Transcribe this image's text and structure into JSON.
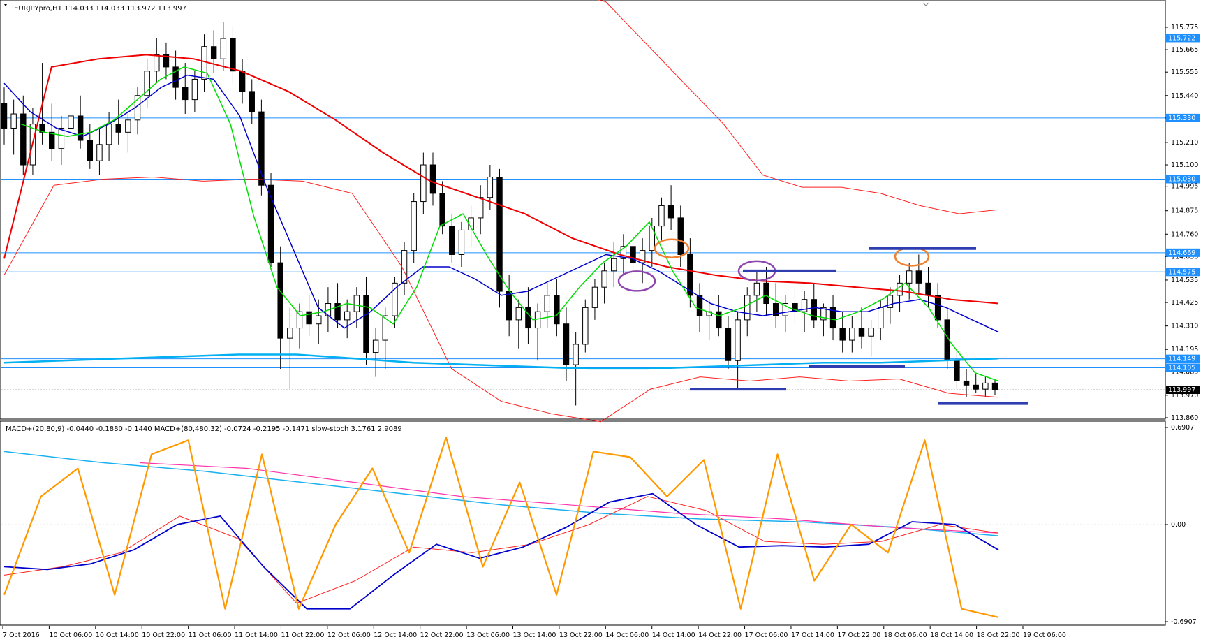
{
  "main_header": "EURJPYpro,H1  114.033 114.033 113.972 113.997",
  "sub_header": "MACD+(20,80,9) -0.0440 -0.1880 -0.1440  MACD+(80,480,32) -0.0724 -0.2195 -0.1471  slow-stoch 3.1761 2.9089",
  "colors": {
    "bull": "#ffffff",
    "bear": "#000000",
    "hline": "#1e90ff",
    "ma_fast": "#00dd00",
    "ma_mid": "#0000cc",
    "ma_slow": "#ee0000",
    "ma_long": "#00b0f0",
    "env": "#ff2020",
    "marker_blue": "#2e3db0",
    "circle_orange": "#f08030",
    "circle_purple": "#8e44ad",
    "stoch_orange": "#ff9900",
    "macd_blue": "#0000cc",
    "macd_pink": "#ff33aa",
    "macd_cyan": "#1ab0f0"
  },
  "chart_data": [
    {
      "type": "candlestick",
      "symbol": "EURJPYpro",
      "timeframe": "H1",
      "ylim": [
        113.86,
        115.84
      ],
      "y_ticks": [
        "115.775",
        "115.665",
        "115.555",
        "115.440",
        "115.330",
        "115.210",
        "115.100",
        "114.995",
        "114.875",
        "114.760",
        "114.650",
        "114.535",
        "114.425",
        "114.310",
        "114.195",
        "114.085",
        "113.970",
        "113.860"
      ],
      "x_ticks": [
        "7 Oct 2016",
        "10 Oct 06:00",
        "10 Oct 14:00",
        "10 Oct 22:00",
        "11 Oct 06:00",
        "11 Oct 14:00",
        "11 Oct 22:00",
        "12 Oct 06:00",
        "12 Oct 14:00",
        "12 Oct 22:00",
        "13 Oct 06:00",
        "13 Oct 14:00",
        "13 Oct 22:00",
        "14 Oct 06:00",
        "14 Oct 14:00",
        "14 Oct 22:00",
        "17 Oct 06:00",
        "17 Oct 14:00",
        "17 Oct 22:00",
        "18 Oct 06:00",
        "18 Oct 14:00",
        "18 Oct 22:00",
        "19 Oct 06:00"
      ],
      "horizontal_levels": [
        115.722,
        115.33,
        115.03,
        114.669,
        114.575,
        114.149,
        114.105
      ],
      "level_labels": [
        "115.722",
        "115.330",
        "115.030",
        "114.669",
        "114.575",
        "114.149",
        "114.105"
      ],
      "current_price": 113.997,
      "current_price_label": "113.997",
      "candles": [
        [
          115.4,
          115.48,
          115.2,
          115.28
        ],
        [
          115.28,
          115.42,
          115.15,
          115.35
        ],
        [
          115.35,
          115.44,
          115.05,
          115.1
        ],
        [
          115.1,
          115.38,
          115.05,
          115.3
        ],
        [
          115.3,
          115.6,
          115.2,
          115.26
        ],
        [
          115.26,
          115.4,
          115.12,
          115.18
        ],
        [
          115.18,
          115.34,
          115.1,
          115.28
        ],
        [
          115.28,
          115.42,
          115.2,
          115.34
        ],
        [
          115.34,
          115.44,
          115.18,
          115.22
        ],
        [
          115.22,
          115.3,
          115.08,
          115.12
        ],
        [
          115.12,
          115.28,
          115.05,
          115.2
        ],
        [
          115.2,
          115.36,
          115.12,
          115.3
        ],
        [
          115.3,
          115.42,
          115.2,
          115.26
        ],
        [
          115.26,
          115.38,
          115.16,
          115.32
        ],
        [
          115.32,
          115.48,
          115.25,
          115.44
        ],
        [
          115.44,
          115.62,
          115.38,
          115.56
        ],
        [
          115.56,
          115.72,
          115.5,
          115.64
        ],
        [
          115.64,
          115.7,
          115.52,
          115.58
        ],
        [
          115.58,
          115.66,
          115.42,
          115.48
        ],
        [
          115.48,
          115.6,
          115.35,
          115.42
        ],
        [
          115.42,
          115.56,
          115.36,
          115.52
        ],
        [
          115.52,
          115.74,
          115.46,
          115.68
        ],
        [
          115.68,
          115.76,
          115.55,
          115.62
        ],
        [
          115.62,
          115.8,
          115.56,
          115.72
        ],
        [
          115.72,
          115.78,
          115.5,
          115.56
        ],
        [
          115.56,
          115.62,
          115.4,
          115.46
        ],
        [
          115.46,
          115.52,
          115.3,
          115.36
        ],
        [
          115.36,
          115.42,
          114.95,
          115.0
        ],
        [
          115.0,
          115.06,
          114.6,
          114.62
        ],
        [
          114.62,
          114.7,
          114.1,
          114.25
        ],
        [
          114.25,
          114.4,
          114.0,
          114.3
        ],
        [
          114.3,
          114.42,
          114.2,
          114.38
        ],
        [
          114.38,
          114.46,
          114.26,
          114.32
        ],
        [
          114.32,
          114.44,
          114.22,
          114.36
        ],
        [
          114.36,
          114.5,
          114.28,
          114.42
        ],
        [
          114.42,
          114.52,
          114.3,
          114.34
        ],
        [
          114.34,
          114.44,
          114.25,
          114.38
        ],
        [
          114.38,
          114.5,
          114.3,
          114.46
        ],
        [
          114.46,
          114.55,
          114.12,
          114.18
        ],
        [
          114.18,
          114.3,
          114.06,
          114.24
        ],
        [
          114.24,
          114.4,
          114.1,
          114.36
        ],
        [
          114.36,
          114.55,
          114.3,
          114.52
        ],
        [
          114.52,
          114.72,
          114.46,
          114.68
        ],
        [
          114.68,
          114.96,
          114.62,
          114.92
        ],
        [
          114.92,
          115.16,
          114.86,
          115.1
        ],
        [
          115.1,
          115.16,
          114.9,
          114.96
        ],
        [
          114.96,
          115.02,
          114.76,
          114.8
        ],
        [
          114.8,
          114.86,
          114.62,
          114.66
        ],
        [
          114.66,
          114.82,
          114.6,
          114.78
        ],
        [
          114.78,
          114.9,
          114.7,
          114.84
        ],
        [
          114.84,
          115.0,
          114.76,
          114.94
        ],
        [
          114.94,
          115.1,
          114.88,
          115.04
        ],
        [
          115.04,
          115.08,
          114.4,
          114.48
        ],
        [
          114.48,
          114.56,
          114.26,
          114.34
        ],
        [
          114.34,
          114.44,
          114.2,
          114.4
        ],
        [
          114.4,
          114.5,
          114.22,
          114.3
        ],
        [
          114.3,
          114.42,
          114.14,
          114.38
        ],
        [
          114.38,
          114.52,
          114.3,
          114.46
        ],
        [
          114.46,
          114.54,
          114.26,
          114.32
        ],
        [
          114.32,
          114.4,
          114.04,
          114.12
        ],
        [
          114.12,
          114.28,
          113.92,
          114.22
        ],
        [
          114.22,
          114.44,
          114.18,
          114.4
        ],
        [
          114.4,
          114.54,
          114.34,
          114.5
        ],
        [
          114.5,
          114.62,
          114.42,
          114.58
        ],
        [
          114.58,
          114.72,
          114.5,
          114.64
        ],
        [
          114.64,
          114.76,
          114.56,
          114.7
        ],
        [
          114.7,
          114.82,
          114.58,
          114.62
        ],
        [
          114.62,
          114.74,
          114.52,
          114.68
        ],
        [
          114.68,
          114.84,
          114.6,
          114.8
        ],
        [
          114.8,
          114.94,
          114.72,
          114.9
        ],
        [
          114.9,
          115.0,
          114.78,
          114.84
        ],
        [
          114.84,
          114.9,
          114.6,
          114.66
        ],
        [
          114.66,
          114.74,
          114.4,
          114.46
        ],
        [
          114.46,
          114.52,
          114.28,
          114.36
        ],
        [
          114.36,
          114.44,
          114.24,
          114.38
        ],
        [
          114.38,
          114.46,
          114.26,
          114.3
        ],
        [
          114.3,
          114.36,
          114.1,
          114.14
        ],
        [
          114.14,
          114.38,
          114.0,
          114.34
        ],
        [
          114.34,
          114.5,
          114.26,
          114.46
        ],
        [
          114.46,
          114.58,
          114.38,
          114.52
        ],
        [
          114.52,
          114.6,
          114.36,
          114.42
        ],
        [
          114.42,
          114.52,
          114.3,
          114.36
        ],
        [
          114.36,
          114.46,
          114.28,
          114.42
        ],
        [
          114.42,
          114.5,
          114.32,
          114.38
        ],
        [
          114.38,
          114.48,
          114.28,
          114.44
        ],
        [
          114.44,
          114.52,
          114.3,
          114.34
        ],
        [
          114.34,
          114.42,
          114.26,
          114.4
        ],
        [
          114.4,
          114.46,
          114.24,
          114.3
        ],
        [
          114.3,
          114.38,
          114.18,
          114.24
        ],
        [
          114.24,
          114.36,
          114.18,
          114.3
        ],
        [
          114.3,
          114.4,
          114.2,
          114.26
        ],
        [
          114.26,
          114.34,
          114.16,
          114.3
        ],
        [
          114.3,
          114.44,
          114.24,
          114.4
        ],
        [
          114.4,
          114.5,
          114.32,
          114.46
        ],
        [
          114.46,
          114.56,
          114.38,
          114.52
        ],
        [
          114.52,
          114.62,
          114.44,
          114.58
        ],
        [
          114.58,
          114.66,
          114.46,
          114.52
        ],
        [
          114.52,
          114.6,
          114.4,
          114.46
        ],
        [
          114.46,
          114.52,
          114.3,
          114.34
        ],
        [
          114.34,
          114.4,
          114.1,
          114.14
        ],
        [
          114.14,
          114.2,
          114.0,
          114.04
        ],
        [
          114.04,
          114.1,
          113.96,
          114.02
        ],
        [
          114.02,
          114.08,
          113.98,
          114.0
        ],
        [
          114.0,
          114.06,
          113.96,
          114.03
        ],
        [
          114.03,
          114.05,
          113.97,
          113.997
        ]
      ],
      "ma_fast": [
        115.3,
        115.26,
        115.24,
        115.26,
        115.32,
        115.42,
        115.52,
        115.58,
        115.55,
        115.3,
        114.85,
        114.5,
        114.36,
        114.38,
        114.42,
        114.4,
        114.32,
        114.5,
        114.8,
        114.86,
        114.66,
        114.48,
        114.34,
        114.36,
        114.5,
        114.62,
        114.7,
        114.82,
        114.58,
        114.4,
        114.36,
        114.4,
        114.46,
        114.4,
        114.36,
        114.34,
        114.38,
        114.44,
        114.52,
        114.4,
        114.22,
        114.08,
        114.04
      ],
      "ma_mid": [
        115.5,
        115.36,
        115.28,
        115.24,
        115.3,
        115.38,
        115.48,
        115.54,
        115.52,
        115.34,
        115.0,
        114.7,
        114.4,
        114.3,
        114.38,
        114.5,
        114.6,
        114.6,
        114.54,
        114.46,
        114.48,
        114.54,
        114.6,
        114.66,
        114.64,
        114.58,
        114.5,
        114.42,
        114.38,
        114.36,
        114.38,
        114.4,
        114.38,
        114.38,
        114.42,
        114.44,
        114.4,
        114.34,
        114.28
      ],
      "ma_slow": [
        114.64,
        115.58,
        115.62,
        115.64,
        115.62,
        115.56,
        115.46,
        115.32,
        115.16,
        115.02,
        114.94,
        114.86,
        114.74,
        114.66,
        114.6,
        114.56,
        114.53,
        114.52,
        114.5,
        114.48,
        114.44,
        114.42
      ],
      "ma_long": [
        114.13,
        114.14,
        114.15,
        114.16,
        114.17,
        114.17,
        114.15,
        114.13,
        114.12,
        114.11,
        114.1,
        114.1,
        114.11,
        114.12,
        114.13,
        114.13,
        114.14,
        114.15
      ],
      "env_upper": [
        116.0,
        115.95,
        115.9,
        115.7,
        115.5,
        115.3,
        115.05,
        114.99,
        114.99,
        114.96,
        114.9,
        114.86,
        114.88
      ],
      "env_lower": [
        114.56,
        115.0,
        115.03,
        115.04,
        115.02,
        115.03,
        115.02,
        114.96,
        114.6,
        114.1,
        113.94,
        113.88,
        113.84,
        114.0,
        114.06,
        114.04,
        114.06,
        114.04,
        114.05,
        113.98,
        113.96
      ]
    },
    {
      "type": "line",
      "name": "indicator",
      "ylim": [
        -0.6907,
        0.6907
      ],
      "y_ticks": [
        "0.6907",
        "0.00",
        "-0.6907"
      ],
      "stoch": [
        -0.5,
        0.2,
        0.4,
        -0.5,
        0.5,
        0.6,
        -0.6,
        0.5,
        -0.6,
        0.0,
        0.4,
        -0.2,
        0.62,
        -0.3,
        0.3,
        -0.5,
        0.52,
        0.48,
        0.2,
        0.46,
        -0.6,
        0.5,
        -0.4,
        0.0,
        -0.2,
        0.6,
        -0.6,
        -0.66
      ],
      "macd_fast": [
        -0.3,
        -0.32,
        -0.28,
        -0.18,
        0.0,
        0.06,
        -0.3,
        -0.6,
        -0.6,
        -0.36,
        -0.14,
        -0.24,
        -0.16,
        -0.02,
        0.16,
        0.22,
        0.0,
        -0.16,
        -0.15,
        -0.16,
        -0.14,
        0.02,
        0.0,
        -0.18
      ],
      "macd_fast_signal": [
        -0.36,
        -0.3,
        -0.2,
        0.06,
        -0.1,
        -0.56,
        -0.4,
        -0.16,
        -0.2,
        -0.14,
        0.0,
        0.2,
        0.1,
        -0.12,
        -0.14,
        -0.12,
        0.0,
        -0.06
      ],
      "macd_slow": [
        0.52,
        0.44,
        0.38,
        0.3,
        0.22,
        0.14,
        0.08,
        0.04,
        0.02,
        -0.02,
        -0.08
      ],
      "macd_slow_signal": [
        0.44,
        0.4,
        0.3,
        0.2,
        0.14,
        0.08,
        0.04,
        -0.02,
        -0.06
      ]
    }
  ],
  "annotations": {
    "orange_circles": [
      114.69,
      114.65
    ],
    "purple_circles": [
      114.53,
      114.58
    ],
    "blue_marks": [
      114.58,
      114.69,
      114.11,
      114.0,
      113.93
    ]
  }
}
